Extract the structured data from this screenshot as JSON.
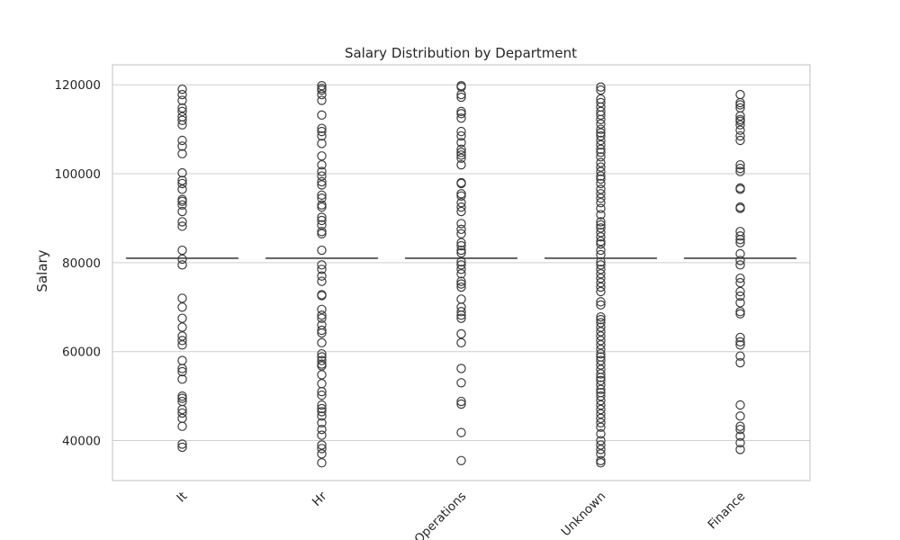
{
  "chart_data": {
    "type": "box",
    "title": "Salary Distribution by Department",
    "xlabel": "",
    "ylabel": "Salary",
    "ylim": [
      31000,
      124500
    ],
    "yticks": [
      40000,
      60000,
      80000,
      100000,
      120000
    ],
    "grid": true,
    "categories": [
      "It",
      "Hr",
      "Operations",
      "Unknown",
      "Finance"
    ],
    "colors": {
      "outline": "#3d3d3d",
      "grid": "#cfcfcf",
      "frame": "#cccccc",
      "text": "#262626"
    },
    "boxes": [
      {
        "category": "It",
        "median": 81000,
        "q1": 81000,
        "q3": 81000,
        "whisker_low": 81000,
        "whisker_high": 81000,
        "outliers": [
          38500,
          39200,
          43200,
          45000,
          46200,
          47000,
          48800,
          49500,
          50000,
          53800,
          55500,
          56200,
          58000,
          61500,
          62500,
          63500,
          65500,
          67500,
          70000,
          72000,
          79500,
          80800,
          82800,
          88200,
          89200,
          91500,
          93000,
          93800,
          94200,
          96500,
          97800,
          98500,
          100200,
          104500,
          106200,
          107500,
          111000,
          112000,
          112800,
          114000,
          114800,
          116500,
          117800,
          119000
        ]
      },
      {
        "category": "Hr",
        "median": 81000,
        "q1": 81000,
        "q3": 81000,
        "whisker_low": 81000,
        "whisker_high": 81000,
        "outliers": [
          35000,
          37000,
          38200,
          39000,
          41200,
          42500,
          44000,
          45500,
          46500,
          47200,
          48000,
          50200,
          51000,
          52800,
          54800,
          56800,
          57200,
          58000,
          58800,
          59500,
          62000,
          64200,
          64800,
          66000,
          67500,
          68200,
          69500,
          72600,
          72800,
          75800,
          77000,
          78500,
          79500,
          82800,
          86500,
          87000,
          88500,
          89500,
          90200,
          92500,
          93000,
          94500,
          95200,
          97500,
          98200,
          99500,
          100500,
          102000,
          104000,
          106800,
          108500,
          109500,
          110200,
          113200,
          116500,
          117800,
          118800,
          119200,
          119800
        ]
      },
      {
        "category": "Operations",
        "median": 81000,
        "q1": 81000,
        "q3": 81000,
        "whisker_low": 81000,
        "whisker_high": 81000,
        "outliers": [
          35500,
          41800,
          48200,
          48800,
          53000,
          56200,
          62000,
          64000,
          67500,
          68200,
          69000,
          70000,
          71800,
          74500,
          75200,
          75800,
          77500,
          78500,
          79500,
          80200,
          82200,
          82800,
          83800,
          84500,
          86500,
          87500,
          88800,
          91500,
          92500,
          93500,
          95000,
          95500,
          97800,
          98000,
          102000,
          103500,
          104200,
          104800,
          105500,
          107000,
          108500,
          109500,
          112500,
          113500,
          114000,
          117200,
          117800,
          119500,
          119800
        ]
      },
      {
        "category": "Unknown",
        "median": 81000,
        "q1": 81000,
        "q3": 81000,
        "whisker_low": 81000,
        "whisker_high": 81000,
        "outliers": [
          35000,
          35500,
          37000,
          38000,
          39000,
          40000,
          41500,
          43000,
          44000,
          45000,
          46000,
          47000,
          48000,
          49000,
          50000,
          50800,
          51500,
          52500,
          53500,
          54200,
          55000,
          56000,
          57000,
          58000,
          58800,
          59500,
          60500,
          61500,
          62500,
          63500,
          64500,
          65500,
          66500,
          67200,
          67800,
          70500,
          71200,
          73500,
          74500,
          75500,
          76500,
          77500,
          78500,
          79500,
          80200,
          81800,
          82800,
          84200,
          84800,
          85800,
          86800,
          87800,
          88500,
          89200,
          90800,
          92200,
          93500,
          94500,
          95500,
          96500,
          97800,
          98800,
          99500,
          100500,
          101500,
          102500,
          103800,
          104800,
          105500,
          106500,
          107500,
          108500,
          109200,
          110000,
          111200,
          112200,
          113200,
          114000,
          115000,
          116000,
          116800,
          118800,
          119500
        ]
      },
      {
        "category": "Finance",
        "median": 81000,
        "q1": 81000,
        "q3": 81000,
        "whisker_low": 81000,
        "whisker_high": 81000,
        "outliers": [
          38000,
          39500,
          41000,
          42500,
          43200,
          45500,
          48000,
          57500,
          59000,
          61500,
          62200,
          63200,
          68500,
          69000,
          71000,
          72500,
          73500,
          75500,
          76500,
          79500,
          80500,
          82000,
          84500,
          85200,
          86000,
          87000,
          92200,
          92500,
          96500,
          96800,
          100500,
          101200,
          102000,
          107500,
          108500,
          109800,
          111000,
          111800,
          112200,
          113000,
          114800,
          115500,
          116000,
          117800
        ]
      }
    ]
  }
}
